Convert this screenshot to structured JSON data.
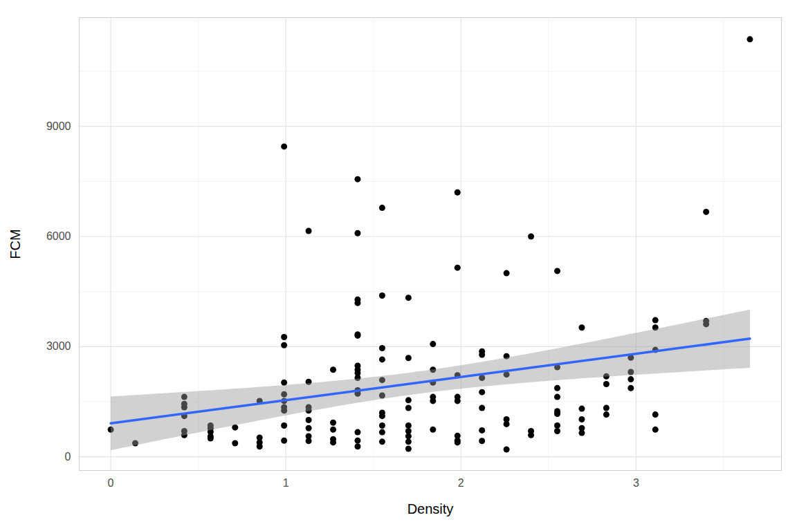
{
  "chart_data": {
    "type": "scatter",
    "x_label": "Density",
    "y_label": "FCM",
    "color": "#000000",
    "grid": true,
    "x": [
      0,
      0.14,
      0.42,
      0.42,
      0.42,
      0.42,
      0.42,
      0.42,
      0.57,
      0.57,
      0.57,
      0.57,
      0.57,
      0.71,
      0.71,
      0.85,
      0.85,
      0.85,
      0.85,
      0.99,
      0.99,
      0.99,
      0.99,
      0.99,
      0.99,
      0.99,
      0.99,
      0.99,
      0.99,
      1.13,
      1.13,
      1.13,
      1.13,
      1.13,
      1.13,
      1.13,
      1.13,
      1.27,
      1.27,
      1.27,
      1.27,
      1.27,
      1.41,
      1.41,
      1.41,
      1.41,
      1.41,
      1.41,
      1.41,
      1.41,
      1.41,
      1.41,
      1.41,
      1.41,
      1.41,
      1.41,
      1.41,
      1.55,
      1.55,
      1.55,
      1.55,
      1.55,
      1.55,
      1.55,
      1.55,
      1.55,
      1.55,
      1.55,
      1.7,
      1.7,
      1.7,
      1.7,
      1.7,
      1.7,
      1.7,
      1.7,
      1.7,
      1.84,
      1.84,
      1.84,
      1.84,
      1.84,
      1.84,
      1.98,
      1.98,
      1.98,
      1.98,
      1.98,
      1.98,
      1.98,
      1.98,
      2.12,
      2.12,
      2.12,
      2.12,
      2.12,
      2.12,
      2.12,
      2.26,
      2.26,
      2.26,
      2.26,
      2.26,
      2.26,
      2.4,
      2.4,
      2.4,
      2.55,
      2.55,
      2.55,
      2.55,
      2.55,
      2.55,
      2.55,
      2.55,
      2.69,
      2.69,
      2.69,
      2.69,
      2.69,
      2.83,
      2.83,
      2.83,
      2.83,
      2.97,
      2.97,
      2.97,
      2.97,
      3.11,
      3.11,
      3.11,
      3.11,
      3.11,
      3.4,
      3.4,
      3.4,
      3.65
    ],
    "values": [
      740,
      370,
      1630,
      1440,
      1350,
      1110,
      700,
      590,
      850,
      780,
      680,
      560,
      500,
      800,
      370,
      1520,
      520,
      390,
      280,
      8450,
      3260,
      3040,
      2020,
      1700,
      1520,
      1350,
      1260,
      850,
      440,
      6150,
      2040,
      1350,
      1260,
      1000,
      780,
      560,
      430,
      2370,
      930,
      740,
      480,
      390,
      7560,
      6090,
      4280,
      4190,
      3330,
      3300,
      2480,
      2370,
      2280,
      2150,
      1810,
      1720,
      670,
      440,
      280,
      6780,
      4390,
      2960,
      2650,
      2090,
      1670,
      1200,
      1110,
      850,
      670,
      410,
      4330,
      2690,
      1540,
      1330,
      850,
      700,
      560,
      410,
      220,
      3070,
      2370,
      2020,
      1630,
      1520,
      740,
      7200,
      5150,
      2220,
      1630,
      1520,
      570,
      440,
      390,
      2870,
      2780,
      2150,
      1760,
      1330,
      720,
      430,
      5000,
      2740,
      2240,
      1020,
      890,
      200,
      6000,
      700,
      590,
      5060,
      2440,
      1870,
      1630,
      1240,
      1170,
      850,
      700,
      3520,
      1310,
      1020,
      780,
      650,
      2190,
      1980,
      1330,
      1150,
      2700,
      2310,
      2110,
      1870,
      3720,
      3520,
      2910,
      1150,
      740,
      6670,
      3700,
      3610,
      11370
    ],
    "xlim": [
      -0.18,
      3.83
    ],
    "xticks": [
      0,
      1,
      2,
      3
    ],
    "ylim": [
      -374,
      11960
    ],
    "yticks": [
      0,
      3000,
      6000,
      9000
    ]
  }
}
